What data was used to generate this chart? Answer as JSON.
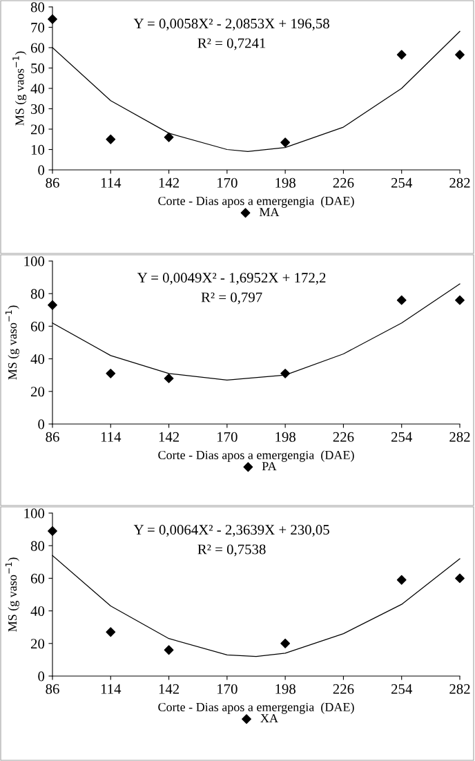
{
  "chart_data": [
    {
      "type": "scatter",
      "xlabel": "Corte - Dias apos a emergengia  (DAE)",
      "ylabel": "MS (g vaos$^{−1}$)",
      "xlim": [
        86,
        282
      ],
      "xticks": [
        86,
        114,
        142,
        170,
        198,
        226,
        254,
        282
      ],
      "ylim": [
        0,
        80
      ],
      "yticks": [
        0,
        10,
        20,
        30,
        40,
        50,
        60,
        70,
        80
      ],
      "grid": false,
      "legend": "bottom",
      "annotations": [
        "Y = 0,0058X² - 2,0853X + 196,58",
        "R² = 0,7241"
      ],
      "series": [
        {
          "name": "MA",
          "marker": "diamond",
          "color": "#000000",
          "x": [
            86,
            114,
            142,
            198,
            254,
            282
          ],
          "values": [
            74,
            15,
            16,
            13.5,
            56.5,
            56.5
          ]
        },
        {
          "type": "line",
          "color": "#000000",
          "x": [
            86,
            114,
            142,
            170,
            180,
            198,
            226,
            254,
            282
          ],
          "values": [
            60,
            34,
            18,
            10,
            9,
            11,
            21,
            40,
            68
          ]
        }
      ]
    },
    {
      "type": "scatter",
      "xlabel": "Corte - Dias apos a emergengia  (DAE)",
      "ylabel": "MS (g vaso$^{−1}$)",
      "xlim": [
        86,
        282
      ],
      "xticks": [
        86,
        114,
        142,
        170,
        198,
        226,
        254,
        282
      ],
      "ylim": [
        0,
        100
      ],
      "yticks": [
        0,
        20,
        40,
        60,
        80,
        100
      ],
      "grid": false,
      "legend": "bottom",
      "annotations": [
        "Y = 0,0049X² - 1,6952X + 172,2",
        "R² = 0,797"
      ],
      "series": [
        {
          "name": "PA",
          "marker": "diamond",
          "color": "#000000",
          "x": [
            86,
            114,
            142,
            198,
            254,
            282
          ],
          "values": [
            73,
            31,
            28,
            31,
            76,
            76
          ]
        },
        {
          "type": "line",
          "color": "#000000",
          "x": [
            86,
            114,
            142,
            170,
            198,
            226,
            254,
            282
          ],
          "values": [
            62,
            42,
            31,
            27,
            30,
            43,
            62,
            86
          ]
        }
      ]
    },
    {
      "type": "scatter",
      "xlabel": "Corte - Dias apos a emergengia  (DAE)",
      "ylabel": "MS (g vaso$^{−1}$)",
      "xlim": [
        86,
        282
      ],
      "xticks": [
        86,
        114,
        142,
        170,
        198,
        226,
        254,
        282
      ],
      "ylim": [
        0,
        100
      ],
      "yticks": [
        0,
        20,
        40,
        60,
        80,
        100
      ],
      "grid": false,
      "legend": "bottom",
      "annotations": [
        "Y = 0,0064X² - 2,3639X + 230,05",
        "R² = 0,7538"
      ],
      "series": [
        {
          "name": "XA",
          "marker": "diamond",
          "color": "#000000",
          "x": [
            86,
            114,
            142,
            198,
            254,
            282
          ],
          "values": [
            89,
            27,
            16,
            20,
            59,
            60
          ]
        },
        {
          "type": "line",
          "color": "#000000",
          "x": [
            86,
            114,
            142,
            170,
            184,
            198,
            226,
            254,
            282
          ],
          "values": [
            74,
            43,
            23,
            13,
            12,
            14,
            26,
            44,
            72
          ]
        }
      ]
    }
  ]
}
